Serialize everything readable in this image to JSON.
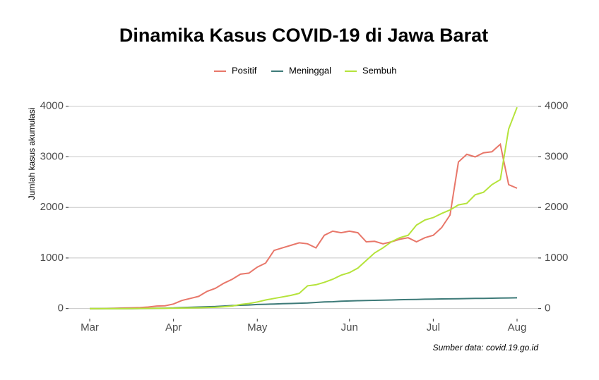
{
  "chart_data": {
    "type": "line",
    "title": "Dinamika Kasus COVID-19 di Jawa Barat",
    "y_label": "Jumlah kasus akumulasi",
    "caption": "Sumber data: covid.19.go.id",
    "categories": [
      "Mar",
      null,
      null,
      null,
      null,
      null,
      null,
      null,
      null,
      null,
      "Apr",
      null,
      null,
      null,
      null,
      null,
      null,
      null,
      null,
      null,
      "May",
      null,
      null,
      null,
      null,
      null,
      null,
      null,
      null,
      null,
      null,
      "Jun",
      null,
      null,
      null,
      null,
      null,
      null,
      null,
      null,
      null,
      "Jul",
      null,
      null,
      null,
      null,
      null,
      null,
      null,
      null,
      null,
      "Aug"
    ],
    "series": [
      {
        "name": "Positif",
        "color": "#e8776a",
        "values": [
          0,
          0,
          2,
          5,
          10,
          15,
          20,
          30,
          50,
          55,
          90,
          160,
          200,
          240,
          340,
          400,
          500,
          580,
          680,
          700,
          820,
          900,
          1150,
          1200,
          1250,
          1300,
          1280,
          1200,
          1450,
          1530,
          1500,
          1530,
          1500,
          1320,
          1330,
          1280,
          1320,
          1370,
          1400,
          1320,
          1400,
          1450,
          1600,
          1850,
          2900,
          3050,
          3000,
          3080,
          3100,
          3250,
          2450,
          2380
        ]
      },
      {
        "name": "Meninggal",
        "color": "#3d7a78",
        "values": [
          0,
          0,
          0,
          0,
          0,
          0,
          1,
          2,
          5,
          8,
          12,
          20,
          25,
          30,
          35,
          40,
          50,
          60,
          65,
          70,
          80,
          85,
          90,
          95,
          100,
          105,
          110,
          120,
          130,
          135,
          145,
          150,
          155,
          160,
          162,
          165,
          170,
          175,
          178,
          180,
          185,
          188,
          190,
          192,
          195,
          197,
          200,
          202,
          205,
          208,
          210,
          212
        ]
      },
      {
        "name": "Sembuh",
        "color": "#b5e33b",
        "values": [
          0,
          0,
          0,
          0,
          0,
          1,
          2,
          3,
          5,
          6,
          8,
          10,
          12,
          15,
          20,
          25,
          35,
          50,
          80,
          100,
          130,
          170,
          200,
          230,
          260,
          300,
          450,
          470,
          520,
          580,
          660,
          710,
          800,
          950,
          1100,
          1200,
          1320,
          1400,
          1450,
          1650,
          1750,
          1800,
          1880,
          1950,
          2050,
          2080,
          2250,
          2300,
          2450,
          2550,
          3550,
          3980
        ]
      }
    ],
    "ylim": [
      -200,
      4150
    ],
    "yticks": [
      0,
      1000,
      2000,
      3000,
      4000
    ],
    "y2lim": [
      -200,
      4150
    ],
    "y2ticks": [
      0,
      1000,
      2000,
      3000,
      4000
    ],
    "grid": true,
    "legend": "top"
  }
}
